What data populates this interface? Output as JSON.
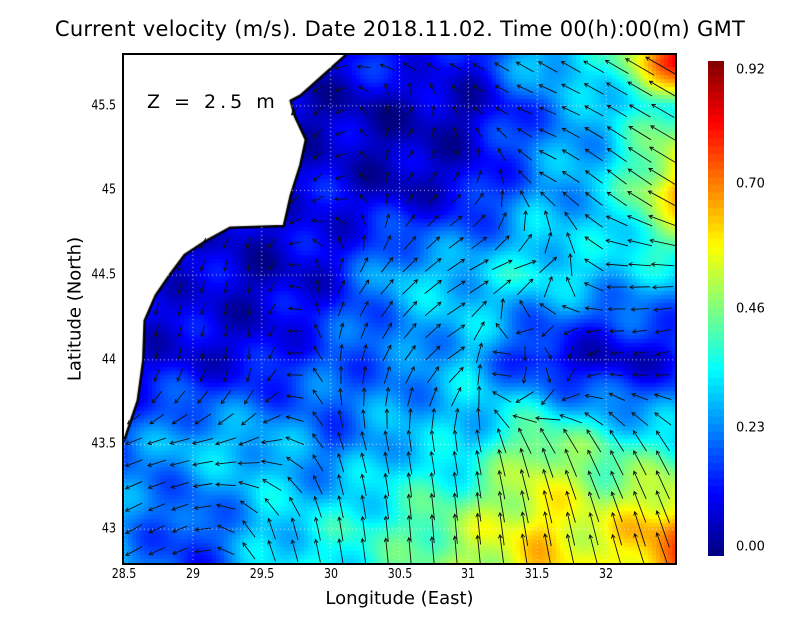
{
  "chart_data": {
    "type": "heatmap",
    "title": "Current velocity (m/s). Date 2018.11.02. Time 00(h):00(m) GMT",
    "xlabel": "Longitude (East)",
    "ylabel": "Latitude (North)",
    "annotation": "Z = 2.5 m",
    "xlim": [
      28.5,
      32.5
    ],
    "ylim": [
      42.8,
      45.8
    ],
    "xticks": [
      "28.5",
      "29",
      "29.5",
      "30",
      "30.5",
      "31",
      "31.5",
      "32"
    ],
    "xtick_values": [
      28.5,
      29,
      29.5,
      30,
      30.5,
      31,
      31.5,
      32
    ],
    "yticks": [
      "45.5",
      "45",
      "44.5",
      "44",
      "43.5",
      "43"
    ],
    "ytick_values": [
      45.5,
      45,
      44.5,
      44,
      43.5,
      43
    ],
    "grid": true,
    "colorbar": {
      "range": [
        0,
        0.92
      ],
      "ticks": [
        "0.92",
        "0.70",
        "0.46",
        "0.23",
        "0.00"
      ],
      "tick_values": [
        0.92,
        0.7,
        0.46,
        0.23,
        0.0
      ],
      "colormap": "jet"
    },
    "grid_lon": [
      28.5,
      29,
      29.5,
      30,
      30.5,
      31,
      31.5,
      32,
      32.5
    ],
    "grid_lat": [
      45.75,
      45.5,
      45.0,
      44.5,
      44.0,
      43.5,
      43.0
    ],
    "speed": [
      [
        0.05,
        0.05,
        0.05,
        0.1,
        0.15,
        0.1,
        0.3,
        0.35,
        0.8
      ],
      [
        0.05,
        0.05,
        0.05,
        0.05,
        0.05,
        0.05,
        0.2,
        0.3,
        0.4
      ],
      [
        0.05,
        0.05,
        0.1,
        0.1,
        0.05,
        0.1,
        0.25,
        0.3,
        0.65
      ],
      [
        0.1,
        0.1,
        0.05,
        0.1,
        0.3,
        0.3,
        0.35,
        0.3,
        0.3
      ],
      [
        0.1,
        0.08,
        0.1,
        0.2,
        0.2,
        0.3,
        0.1,
        0.05,
        0.1
      ],
      [
        0.2,
        0.3,
        0.3,
        0.2,
        0.3,
        0.3,
        0.5,
        0.4,
        0.35
      ],
      [
        0.25,
        0.15,
        0.3,
        0.35,
        0.4,
        0.5,
        0.6,
        0.55,
        0.7
      ]
    ],
    "direction_deg": [
      [
        200,
        200,
        200,
        200,
        160,
        150,
        150,
        150,
        150
      ],
      [
        230,
        230,
        230,
        230,
        30,
        150,
        160,
        150,
        150
      ],
      [
        220,
        220,
        220,
        220,
        60,
        40,
        150,
        140,
        150
      ],
      [
        250,
        250,
        270,
        60,
        45,
        30,
        0,
        180,
        180
      ],
      [
        260,
        260,
        270,
        90,
        60,
        30,
        350,
        180,
        200
      ],
      [
        200,
        190,
        200,
        110,
        100,
        100,
        110,
        120,
        120
      ],
      [
        210,
        200,
        110,
        100,
        95,
        95,
        100,
        105,
        110
      ]
    ]
  }
}
